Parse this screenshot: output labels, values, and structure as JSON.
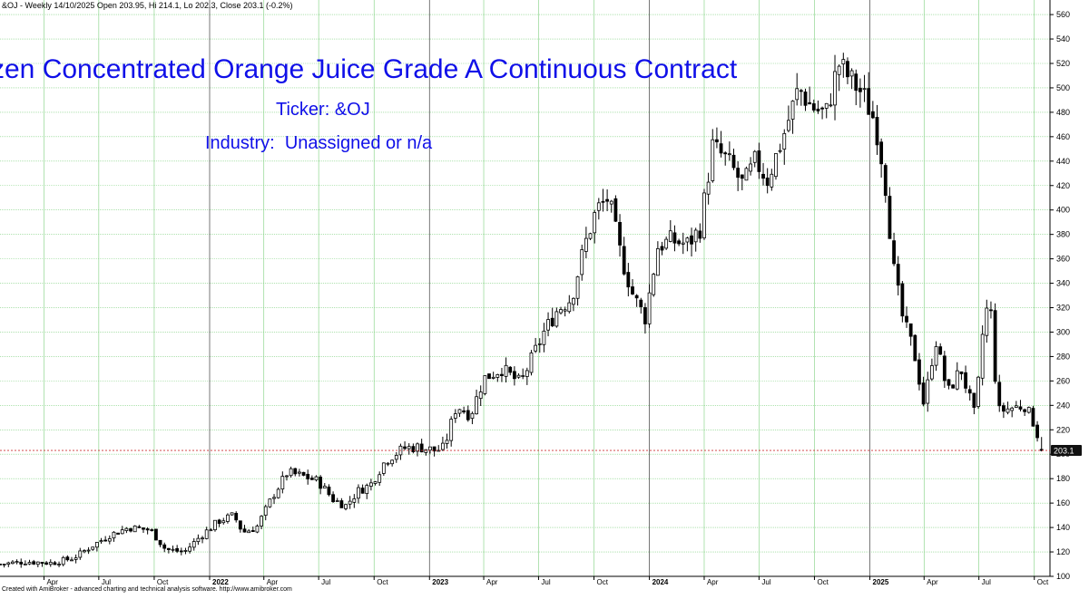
{
  "header": {
    "info": "&OJ - Weekly 14/10/2025 Open 203.95, Hi 214.1, Lo 202.3, Close 203.1 (-0.2%)"
  },
  "chart_title": {
    "title": "zen Concentrated Orange Juice Grade A Continuous Contract",
    "ticker": "Ticker: &OJ",
    "industry": "Industry:  Unassigned or n/a"
  },
  "footer": {
    "text": "Created with AmiBroker - advanced charting and technical analysis software. http://www.amibroker.com"
  },
  "chart_data": {
    "type": "candlestick",
    "title": "zen Concentrated Orange Juice Grade A Continuous Contract",
    "symbol": "&OJ",
    "interval": "Weekly",
    "ylim": [
      100,
      566
    ],
    "y_ticks": [
      100,
      120,
      140,
      160,
      180,
      200,
      220,
      240,
      260,
      280,
      300,
      320,
      340,
      360,
      380,
      400,
      420,
      440,
      460,
      480,
      500,
      520,
      540,
      560
    ],
    "x_range": [
      "2021-01-18",
      "2025-10-27"
    ],
    "x_ticks": [
      {
        "date": "2021-04-01",
        "label": "Apr",
        "major": false
      },
      {
        "date": "2021-07-01",
        "label": "Jul",
        "major": false
      },
      {
        "date": "2021-10-01",
        "label": "Oct",
        "major": false
      },
      {
        "date": "2022-01-01",
        "label": "2022",
        "major": true
      },
      {
        "date": "2022-04-01",
        "label": "Apr",
        "major": false
      },
      {
        "date": "2022-07-01",
        "label": "Jul",
        "major": false
      },
      {
        "date": "2022-10-01",
        "label": "Oct",
        "major": false
      },
      {
        "date": "2023-01-01",
        "label": "2023",
        "major": true
      },
      {
        "date": "2023-04-01",
        "label": "Apr",
        "major": false
      },
      {
        "date": "2023-07-01",
        "label": "Jul",
        "major": false
      },
      {
        "date": "2023-10-01",
        "label": "Oct",
        "major": false
      },
      {
        "date": "2024-01-01",
        "label": "2024",
        "major": true
      },
      {
        "date": "2024-04-01",
        "label": "Apr",
        "major": false
      },
      {
        "date": "2024-07-01",
        "label": "Jul",
        "major": false
      },
      {
        "date": "2024-10-01",
        "label": "Oct",
        "major": false
      },
      {
        "date": "2025-01-01",
        "label": "2025",
        "major": true
      },
      {
        "date": "2025-04-01",
        "label": "Apr",
        "major": false
      },
      {
        "date": "2025-07-01",
        "label": "Jul",
        "major": false
      },
      {
        "date": "2025-10-01",
        "label": "Oct",
        "major": false
      }
    ],
    "grid": true,
    "last_close": 203.1,
    "last_close_label": "203.1",
    "last_bar": {
      "date": "2025-10-14",
      "open": 203.95,
      "high": 214.1,
      "low": 202.3,
      "close": 203.1
    },
    "close_anchors": [
      [
        "2021-01-18",
        110
      ],
      [
        "2021-03-01",
        112
      ],
      [
        "2021-04-15",
        111
      ],
      [
        "2021-05-20",
        115
      ],
      [
        "2021-06-20",
        125
      ],
      [
        "2021-07-20",
        134
      ],
      [
        "2021-08-20",
        140
      ],
      [
        "2021-09-25",
        138
      ],
      [
        "2021-10-20",
        122
      ],
      [
        "2021-11-20",
        120
      ],
      [
        "2021-12-15",
        132
      ],
      [
        "2022-01-15",
        145
      ],
      [
        "2022-02-10",
        150
      ],
      [
        "2022-02-25",
        136
      ],
      [
        "2022-03-20",
        140
      ],
      [
        "2022-04-15",
        165
      ],
      [
        "2022-05-10",
        185
      ],
      [
        "2022-06-05",
        182
      ],
      [
        "2022-06-30",
        178
      ],
      [
        "2022-07-25",
        163
      ],
      [
        "2022-08-15",
        158
      ],
      [
        "2022-09-05",
        170
      ],
      [
        "2022-09-25",
        175
      ],
      [
        "2022-10-20",
        195
      ],
      [
        "2022-11-20",
        205
      ],
      [
        "2022-12-15",
        206
      ],
      [
        "2023-01-10",
        203
      ],
      [
        "2023-01-25",
        205
      ],
      [
        "2023-02-15",
        240
      ],
      [
        "2023-03-10",
        232
      ],
      [
        "2023-04-01",
        262
      ],
      [
        "2023-05-01",
        270
      ],
      [
        "2023-06-01",
        258
      ],
      [
        "2023-07-10",
        300
      ],
      [
        "2023-08-01",
        318
      ],
      [
        "2023-08-25",
        328
      ],
      [
        "2023-09-15",
        370
      ],
      [
        "2023-10-05",
        400
      ],
      [
        "2023-10-25",
        410
      ],
      [
        "2023-11-15",
        362
      ],
      [
        "2023-12-05",
        330
      ],
      [
        "2023-12-25",
        312
      ],
      [
        "2024-01-15",
        370
      ],
      [
        "2024-02-05",
        375
      ],
      [
        "2024-03-05",
        372
      ],
      [
        "2024-03-25",
        385
      ],
      [
        "2024-04-15",
        452
      ],
      [
        "2024-05-10",
        440
      ],
      [
        "2024-06-05",
        420
      ],
      [
        "2024-06-25",
        440
      ],
      [
        "2024-07-15",
        425
      ],
      [
        "2024-08-10",
        460
      ],
      [
        "2024-09-05",
        500
      ],
      [
        "2024-09-25",
        485
      ],
      [
        "2024-10-20",
        478
      ],
      [
        "2024-11-10",
        520
      ],
      [
        "2024-12-01",
        506
      ],
      [
        "2024-12-20",
        495
      ],
      [
        "2025-01-10",
        472
      ],
      [
        "2025-01-25",
        430
      ],
      [
        "2025-02-10",
        350
      ],
      [
        "2025-02-25",
        310
      ],
      [
        "2025-03-15",
        285
      ],
      [
        "2025-04-01",
        240
      ],
      [
        "2025-04-20",
        295
      ],
      [
        "2025-05-10",
        250
      ],
      [
        "2025-06-01",
        270
      ],
      [
        "2025-06-25",
        230
      ],
      [
        "2025-07-10",
        315
      ],
      [
        "2025-07-20",
        322
      ],
      [
        "2025-08-01",
        235
      ],
      [
        "2025-08-25",
        238
      ],
      [
        "2025-09-15",
        240
      ],
      [
        "2025-10-01",
        225
      ],
      [
        "2025-10-14",
        203.1
      ]
    ]
  }
}
